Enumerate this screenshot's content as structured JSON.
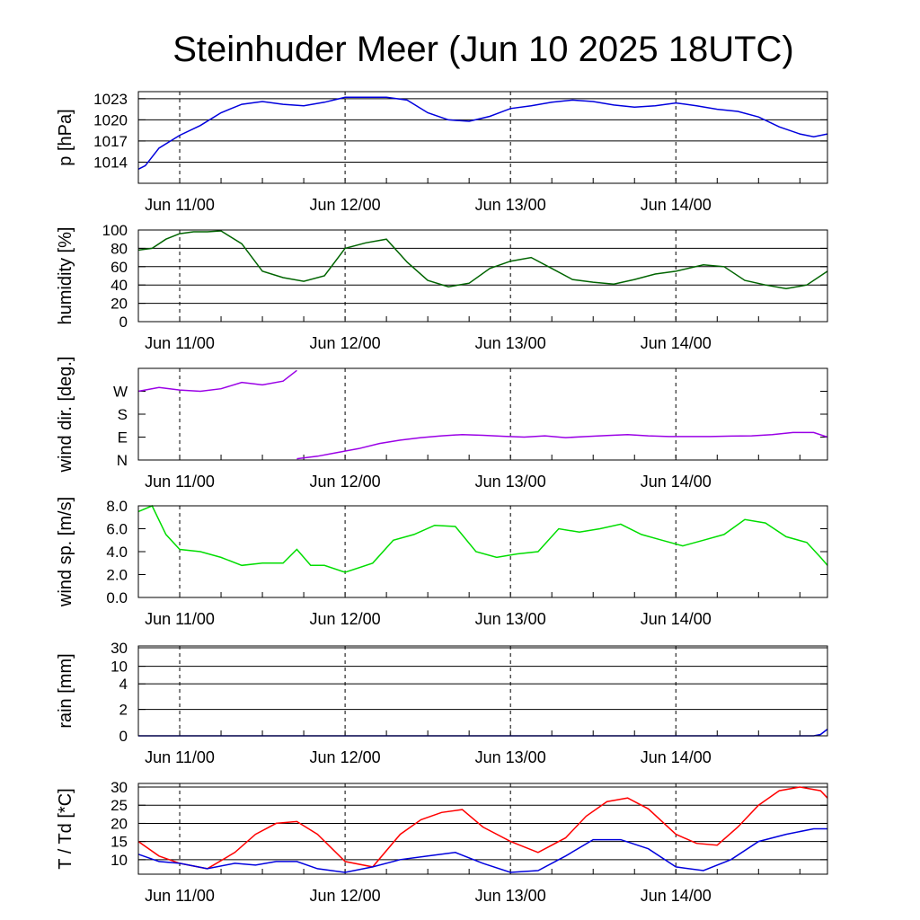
{
  "title": "Steinhuder Meer (Jun 10 2025 18UTC)",
  "time_axis": {
    "start": "2025-06-10 18:00 UTC",
    "end": "2025-06-14 22:00 UTC",
    "labels": [
      "Jun 11/00",
      "Jun 12/00",
      "Jun 13/00",
      "Jun 14/00"
    ]
  },
  "colors": {
    "pressure": "#0000dd",
    "humidity": "#006400",
    "wind_dir": "#9a00e6",
    "wind_speed": "#00dd00",
    "rain": "#0000dd",
    "temperature": "#ff0000",
    "dewpoint": "#0000dd"
  },
  "chart_data": [
    {
      "type": "line",
      "ylabel": "p [hPa]",
      "ylim": [
        1011,
        1024
      ],
      "yticks": [
        "1014",
        "1017",
        "1020",
        "1023"
      ],
      "ytick_values": [
        1014,
        1017,
        1020,
        1023
      ],
      "grid": true,
      "series": [
        {
          "color": "#0000dd",
          "x": [
            "2025-06-10 18:00",
            "2025-06-10 19:00",
            "2025-06-10 21:00",
            "2025-06-11 00:00",
            "2025-06-11 03:00",
            "2025-06-11 06:00",
            "2025-06-11 09:00",
            "2025-06-11 12:00",
            "2025-06-11 15:00",
            "2025-06-11 18:00",
            "2025-06-11 21:00",
            "2025-06-12 00:00",
            "2025-06-12 03:00",
            "2025-06-12 06:00",
            "2025-06-12 09:00",
            "2025-06-12 12:00",
            "2025-06-12 15:00",
            "2025-06-12 18:00",
            "2025-06-12 21:00",
            "2025-06-13 00:00",
            "2025-06-13 03:00",
            "2025-06-13 06:00",
            "2025-06-13 09:00",
            "2025-06-13 12:00",
            "2025-06-13 15:00",
            "2025-06-13 18:00",
            "2025-06-13 21:00",
            "2025-06-14 00:00",
            "2025-06-14 03:00",
            "2025-06-14 06:00",
            "2025-06-14 09:00",
            "2025-06-14 12:00",
            "2025-06-14 15:00",
            "2025-06-14 18:00",
            "2025-06-14 20:00",
            "2025-06-14 22:00"
          ],
          "y": [
            1013.0,
            1013.5,
            1016.0,
            1017.8,
            1019.2,
            1021.0,
            1022.2,
            1022.6,
            1022.2,
            1022.0,
            1022.5,
            1023.2,
            1023.2,
            1023.2,
            1022.8,
            1021.0,
            1020.0,
            1019.8,
            1020.5,
            1021.6,
            1022.0,
            1022.5,
            1022.8,
            1022.6,
            1022.1,
            1021.8,
            1022.0,
            1022.4,
            1022.0,
            1021.5,
            1021.2,
            1020.4,
            1019.0,
            1018.0,
            1017.6,
            1018.0
          ]
        }
      ]
    },
    {
      "type": "line",
      "ylabel": "humidity [%]",
      "ylim": [
        0,
        100
      ],
      "yticks": [
        "0",
        "20",
        "40",
        "60",
        "80",
        "100"
      ],
      "ytick_values": [
        0,
        20,
        40,
        60,
        80,
        100
      ],
      "grid": true,
      "series": [
        {
          "color": "#006400",
          "x": [
            "2025-06-10 18:00",
            "2025-06-10 20:00",
            "2025-06-10 22:00",
            "2025-06-11 00:00",
            "2025-06-11 02:00",
            "2025-06-11 04:00",
            "2025-06-11 06:00",
            "2025-06-11 09:00",
            "2025-06-11 12:00",
            "2025-06-11 15:00",
            "2025-06-11 18:00",
            "2025-06-11 21:00",
            "2025-06-12 00:00",
            "2025-06-12 03:00",
            "2025-06-12 06:00",
            "2025-06-12 09:00",
            "2025-06-12 12:00",
            "2025-06-12 15:00",
            "2025-06-12 18:00",
            "2025-06-12 21:00",
            "2025-06-13 00:00",
            "2025-06-13 03:00",
            "2025-06-13 06:00",
            "2025-06-13 09:00",
            "2025-06-13 12:00",
            "2025-06-13 15:00",
            "2025-06-13 18:00",
            "2025-06-13 21:00",
            "2025-06-14 00:00",
            "2025-06-14 04:00",
            "2025-06-14 07:00",
            "2025-06-14 10:00",
            "2025-06-14 13:00",
            "2025-06-14 16:00",
            "2025-06-14 19:00",
            "2025-06-14 22:00"
          ],
          "y": [
            78,
            80,
            90,
            96,
            98,
            98,
            99,
            85,
            55,
            48,
            44,
            50,
            80,
            86,
            90,
            65,
            45,
            38,
            42,
            58,
            66,
            70,
            58,
            46,
            43,
            41,
            46,
            52,
            55,
            62,
            60,
            45,
            40,
            36,
            40,
            55
          ]
        }
      ]
    },
    {
      "type": "line",
      "ylabel": "wind dir. [deg.]",
      "ylim": [
        0,
        360
      ],
      "yticks": [
        "N",
        "E",
        "S",
        "W"
      ],
      "ytick_values": [
        0,
        90,
        180,
        270
      ],
      "grid": false,
      "series": [
        {
          "color": "#9a00e6",
          "x": [
            "2025-06-10 18:00",
            "2025-06-10 21:00",
            "2025-06-11 00:00",
            "2025-06-11 03:00",
            "2025-06-11 06:00",
            "2025-06-11 09:00",
            "2025-06-11 12:00",
            "2025-06-11 15:00",
            "2025-06-11 17:00",
            null,
            "2025-06-11 17:00",
            "2025-06-11 20:00",
            "2025-06-11 23:00",
            "2025-06-12 02:00",
            "2025-06-12 05:00",
            "2025-06-12 08:00",
            "2025-06-12 11:00",
            "2025-06-12 14:00",
            "2025-06-12 17:00",
            "2025-06-12 20:00",
            "2025-06-12 23:00",
            "2025-06-13 02:00",
            "2025-06-13 05:00",
            "2025-06-13 08:00",
            "2025-06-13 11:00",
            "2025-06-13 14:00",
            "2025-06-13 17:00",
            "2025-06-13 20:00",
            "2025-06-13 23:00",
            "2025-06-14 02:00",
            "2025-06-14 05:00",
            "2025-06-14 08:00",
            "2025-06-14 11:00",
            "2025-06-14 14:00",
            "2025-06-14 17:00",
            "2025-06-14 20:00",
            "2025-06-14 22:00"
          ],
          "y": [
            270,
            285,
            275,
            270,
            280,
            305,
            295,
            310,
            352,
            null,
            5,
            15,
            30,
            45,
            65,
            78,
            88,
            95,
            100,
            97,
            93,
            90,
            95,
            88,
            92,
            96,
            100,
            95,
            92,
            92,
            92,
            94,
            95,
            100,
            108,
            108,
            90
          ]
        }
      ]
    },
    {
      "type": "line",
      "ylabel": "wind sp. [m/s]",
      "ylim": [
        0,
        8
      ],
      "yticks": [
        "0.0",
        "2.0",
        "4.0",
        "6.0",
        "8.0"
      ],
      "ytick_values": [
        0,
        2,
        4,
        6,
        8
      ],
      "grid": false,
      "series": [
        {
          "color": "#00dd00",
          "x": [
            "2025-06-10 18:00",
            "2025-06-10 20:00",
            "2025-06-10 22:00",
            "2025-06-11 00:00",
            "2025-06-11 03:00",
            "2025-06-11 06:00",
            "2025-06-11 09:00",
            "2025-06-11 12:00",
            "2025-06-11 15:00",
            "2025-06-11 17:00",
            "2025-06-11 19:00",
            "2025-06-11 21:00",
            "2025-06-12 00:00",
            "2025-06-12 04:00",
            "2025-06-12 07:00",
            "2025-06-12 10:00",
            "2025-06-12 13:00",
            "2025-06-12 16:00",
            "2025-06-12 19:00",
            "2025-06-12 22:00",
            "2025-06-13 01:00",
            "2025-06-13 04:00",
            "2025-06-13 07:00",
            "2025-06-13 10:00",
            "2025-06-13 13:00",
            "2025-06-13 16:00",
            "2025-06-13 19:00",
            "2025-06-13 22:00",
            "2025-06-14 01:00",
            "2025-06-14 04:00",
            "2025-06-14 07:00",
            "2025-06-14 10:00",
            "2025-06-14 13:00",
            "2025-06-14 16:00",
            "2025-06-14 19:00",
            "2025-06-14 21:00",
            "2025-06-14 22:00"
          ],
          "y": [
            7.5,
            8.0,
            5.5,
            4.2,
            4.0,
            3.5,
            2.8,
            3.0,
            3.0,
            4.2,
            2.8,
            2.8,
            2.2,
            3.0,
            5.0,
            5.5,
            6.3,
            6.2,
            4.0,
            3.5,
            3.8,
            4.0,
            6.0,
            5.7,
            6.0,
            6.4,
            5.5,
            5.0,
            4.5,
            5.0,
            5.5,
            6.8,
            6.5,
            5.3,
            4.8,
            3.5,
            2.8
          ]
        }
      ]
    },
    {
      "type": "line",
      "ylabel": "rain [mm]",
      "ylim": [
        0,
        30
      ],
      "yticks": [
        "0",
        "2",
        "4",
        "10",
        "30"
      ],
      "ytick_values": [
        0,
        2,
        4,
        10,
        30
      ],
      "grid": true,
      "series": [
        {
          "color": "#0000dd",
          "x": [
            "2025-06-10 18:00",
            "2025-06-14 20:00",
            "2025-06-14 21:00",
            "2025-06-14 22:00"
          ],
          "y": [
            0,
            0,
            0.1,
            0.5
          ]
        }
      ]
    },
    {
      "type": "line",
      "ylabel": "T / Td [*C]",
      "ylim": [
        6,
        31
      ],
      "yticks": [
        "10",
        "15",
        "20",
        "25",
        "30"
      ],
      "ytick_values": [
        10,
        15,
        20,
        25,
        30
      ],
      "grid": true,
      "series": [
        {
          "color": "#ff0000",
          "x": [
            "2025-06-10 18:00",
            "2025-06-10 21:00",
            "2025-06-11 00:00",
            "2025-06-11 04:00",
            "2025-06-11 08:00",
            "2025-06-11 11:00",
            "2025-06-11 14:00",
            "2025-06-11 17:00",
            "2025-06-11 20:00",
            "2025-06-12 00:00",
            "2025-06-12 04:00",
            "2025-06-12 08:00",
            "2025-06-12 11:00",
            "2025-06-12 14:00",
            "2025-06-12 17:00",
            "2025-06-12 20:00",
            "2025-06-13 00:00",
            "2025-06-13 04:00",
            "2025-06-13 08:00",
            "2025-06-13 11:00",
            "2025-06-13 14:00",
            "2025-06-13 17:00",
            "2025-06-13 20:00",
            "2025-06-14 00:00",
            "2025-06-14 03:00",
            "2025-06-14 06:00",
            "2025-06-14 09:00",
            "2025-06-14 12:00",
            "2025-06-14 15:00",
            "2025-06-14 18:00",
            "2025-06-14 21:00",
            "2025-06-14 22:00"
          ],
          "y": [
            15,
            11,
            9,
            7.5,
            12,
            17,
            20,
            20.5,
            17,
            9.5,
            8,
            17,
            21,
            23,
            23.8,
            19,
            15,
            12,
            16,
            22,
            26,
            27,
            24,
            17,
            14.5,
            14,
            19,
            25,
            29,
            30,
            29,
            27
          ]
        },
        {
          "color": "#0000dd",
          "x": [
            "2025-06-10 18:00",
            "2025-06-10 21:00",
            "2025-06-11 00:00",
            "2025-06-11 04:00",
            "2025-06-11 08:00",
            "2025-06-11 11:00",
            "2025-06-11 14:00",
            "2025-06-11 17:00",
            "2025-06-11 20:00",
            "2025-06-12 00:00",
            "2025-06-12 04:00",
            "2025-06-12 08:00",
            "2025-06-12 12:00",
            "2025-06-12 16:00",
            "2025-06-12 20:00",
            "2025-06-13 00:00",
            "2025-06-13 04:00",
            "2025-06-13 08:00",
            "2025-06-13 12:00",
            "2025-06-13 16:00",
            "2025-06-13 20:00",
            "2025-06-14 00:00",
            "2025-06-14 04:00",
            "2025-06-14 08:00",
            "2025-06-14 12:00",
            "2025-06-14 16:00",
            "2025-06-14 20:00",
            "2025-06-14 22:00"
          ],
          "y": [
            11.5,
            9.5,
            9,
            7.5,
            9,
            8.5,
            9.5,
            9.5,
            7.5,
            6.5,
            8,
            10,
            11,
            12,
            9,
            6.5,
            7,
            11,
            15.5,
            15.5,
            13,
            8,
            7,
            10,
            15,
            17,
            18.5,
            18.5
          ]
        }
      ]
    }
  ]
}
